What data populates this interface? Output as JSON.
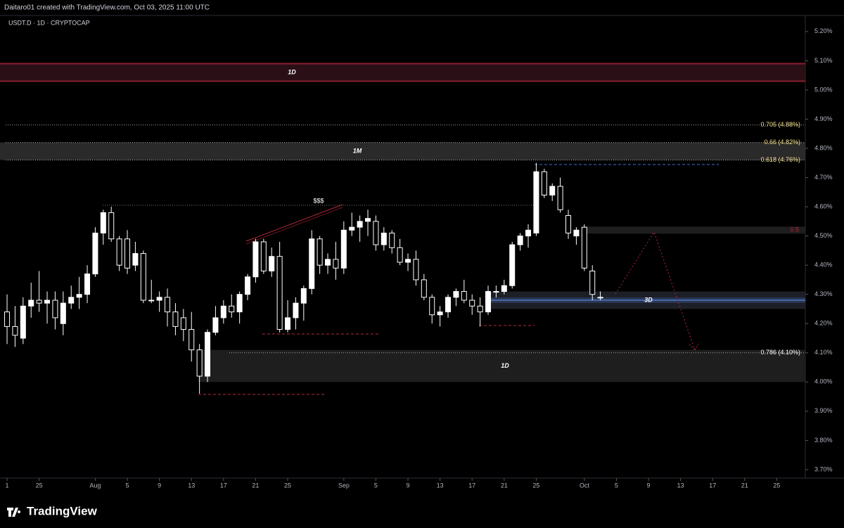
{
  "chart_data": {
    "type": "candlestick",
    "header": "Daitaro01 created with TradingView.com, Oct 03, 2025 11:00 UTC",
    "symbol": "USDT.D · 1D · CRYPTOCAP",
    "brand": "TradingView",
    "x": [
      0,
      1,
      2,
      3,
      4,
      5,
      6,
      7,
      8,
      9,
      10,
      11,
      12,
      13,
      14,
      15,
      16,
      17,
      18,
      19,
      20,
      21,
      22,
      23,
      24,
      25,
      26,
      27,
      28,
      29,
      30,
      31,
      32,
      33,
      34,
      35,
      36,
      37,
      38,
      39,
      40,
      41,
      42,
      43,
      44,
      45,
      46,
      47,
      48,
      49,
      50,
      51,
      52,
      53,
      54,
      55,
      56,
      57,
      58,
      59,
      60,
      61,
      62,
      63,
      64,
      65,
      66,
      67,
      68,
      69,
      70,
      71,
      72,
      73,
      74
    ],
    "open": [
      4.24,
      4.19,
      4.15,
      4.26,
      4.28,
      4.27,
      4.28,
      4.2,
      4.27,
      4.29,
      4.3,
      4.37,
      4.51,
      4.58,
      4.49,
      4.49,
      4.4,
      4.44,
      4.28,
      4.28,
      4.29,
      4.24,
      4.22,
      4.18,
      4.11,
      4.02,
      4.17,
      4.22,
      4.26,
      4.24,
      4.3,
      4.36,
      4.48,
      4.38,
      4.43,
      4.18,
      4.22,
      4.27,
      4.32,
      4.49,
      4.4,
      4.42,
      4.39,
      4.52,
      4.53,
      4.55,
      4.55,
      4.47,
      4.51,
      4.46,
      4.41,
      4.42,
      4.35,
      4.29,
      4.23,
      4.24,
      4.29,
      4.31,
      4.28,
      4.26,
      4.24,
      4.31,
      4.31,
      4.33,
      4.47,
      4.5,
      4.51,
      4.72,
      4.64,
      4.67,
      4.57,
      4.5,
      4.53,
      4.38,
      4.29
    ],
    "high": [
      4.3,
      4.26,
      4.29,
      4.34,
      4.38,
      4.31,
      4.31,
      4.31,
      4.33,
      4.36,
      4.4,
      4.53,
      4.59,
      4.6,
      4.5,
      4.52,
      4.48,
      4.45,
      4.35,
      4.31,
      4.32,
      4.27,
      4.25,
      4.24,
      4.13,
      4.18,
      4.26,
      4.28,
      4.3,
      4.31,
      4.37,
      4.49,
      4.49,
      4.46,
      4.48,
      4.28,
      4.29,
      4.33,
      4.52,
      4.5,
      4.44,
      4.48,
      4.55,
      4.58,
      4.57,
      4.59,
      4.57,
      4.53,
      4.52,
      4.49,
      4.44,
      4.45,
      4.37,
      4.3,
      4.26,
      4.3,
      4.32,
      4.35,
      4.3,
      4.29,
      4.33,
      4.33,
      4.35,
      4.48,
      4.51,
      4.54,
      4.75,
      4.73,
      4.68,
      4.7,
      4.59,
      4.53,
      4.54,
      4.4,
      4.31
    ],
    "low": [
      4.13,
      4.12,
      4.13,
      4.22,
      4.24,
      4.2,
      4.18,
      4.16,
      4.25,
      4.25,
      4.27,
      4.36,
      4.47,
      4.48,
      4.38,
      4.37,
      4.38,
      4.27,
      4.27,
      4.24,
      4.19,
      4.16,
      4.14,
      4.07,
      3.96,
      4.0,
      4.16,
      4.2,
      4.22,
      4.2,
      4.28,
      4.34,
      4.37,
      4.36,
      4.17,
      4.17,
      4.18,
      4.21,
      4.3,
      4.37,
      4.37,
      4.35,
      4.37,
      4.5,
      4.48,
      4.5,
      4.45,
      4.45,
      4.44,
      4.4,
      4.38,
      4.33,
      4.28,
      4.2,
      4.19,
      4.22,
      4.26,
      4.27,
      4.23,
      4.19,
      4.23,
      4.29,
      4.3,
      4.32,
      4.45,
      4.46,
      4.5,
      4.63,
      4.62,
      4.58,
      4.49,
      4.47,
      4.38,
      4.28,
      4.28
    ],
    "close": [
      4.19,
      4.16,
      4.26,
      4.28,
      4.27,
      4.28,
      4.22,
      4.27,
      4.29,
      4.3,
      4.37,
      4.51,
      4.58,
      4.49,
      4.4,
      4.39,
      4.44,
      4.28,
      4.28,
      4.29,
      4.24,
      4.19,
      4.18,
      4.11,
      4.02,
      4.17,
      4.22,
      4.26,
      4.24,
      4.3,
      4.36,
      4.48,
      4.38,
      4.43,
      4.18,
      4.22,
      4.27,
      4.32,
      4.49,
      4.4,
      4.42,
      4.39,
      4.52,
      4.53,
      4.55,
      4.56,
      4.47,
      4.51,
      4.46,
      4.41,
      4.42,
      4.35,
      4.29,
      4.23,
      4.24,
      4.29,
      4.31,
      4.28,
      4.26,
      4.24,
      4.31,
      4.31,
      4.33,
      4.47,
      4.5,
      4.52,
      4.72,
      4.64,
      4.67,
      4.59,
      4.51,
      4.52,
      4.39,
      4.3,
      4.29
    ],
    "xlim": [
      -0.88,
      99.56
    ],
    "xticks": [
      {
        "value": 0,
        "label": "1"
      },
      {
        "value": 4,
        "label": "25"
      },
      {
        "value": 11,
        "label": "Aug"
      },
      {
        "value": 15,
        "label": "5"
      },
      {
        "value": 19,
        "label": "9"
      },
      {
        "value": 23,
        "label": "13"
      },
      {
        "value": 27,
        "label": "17"
      },
      {
        "value": 31,
        "label": "21"
      },
      {
        "value": 35,
        "label": "25"
      },
      {
        "value": 42,
        "label": "Sep"
      },
      {
        "value": 46,
        "label": "5"
      },
      {
        "value": 50,
        "label": "9"
      },
      {
        "value": 54,
        "label": "13"
      },
      {
        "value": 58,
        "label": "17"
      },
      {
        "value": 62,
        "label": "21"
      },
      {
        "value": 66,
        "label": "25"
      },
      {
        "value": 72,
        "label": "Oct"
      },
      {
        "value": 76,
        "label": "5"
      },
      {
        "value": 80,
        "label": "9"
      },
      {
        "value": 84,
        "label": "13"
      },
      {
        "value": 88,
        "label": "17"
      },
      {
        "value": 92,
        "label": "21"
      },
      {
        "value": 96,
        "label": "25"
      }
    ],
    "ylim": [
      3.671,
      5.255
    ],
    "yticks": [
      {
        "value": 5.2,
        "label": "5.20%"
      },
      {
        "value": 5.1,
        "label": "5.10%"
      },
      {
        "value": 5.0,
        "label": "5.00%"
      },
      {
        "value": 4.9,
        "label": "4.90%"
      },
      {
        "value": 4.8,
        "label": "4.80%"
      },
      {
        "value": 4.7,
        "label": "4.70%"
      },
      {
        "value": 4.6,
        "label": "4.60%"
      },
      {
        "value": 4.5,
        "label": "4.50%"
      },
      {
        "value": 4.4,
        "label": "4.40%"
      },
      {
        "value": 4.3,
        "label": "4.30%"
      },
      {
        "value": 4.2,
        "label": "4.20%"
      },
      {
        "value": 4.1,
        "label": "4.10%"
      },
      {
        "value": 4.0,
        "label": "4.00%"
      },
      {
        "value": 3.9,
        "label": "3.90%"
      },
      {
        "value": 3.8,
        "label": "3.80%"
      },
      {
        "value": 3.7,
        "label": "3.70%"
      }
    ],
    "up_color": "#ffffff",
    "down_color": "#000000",
    "zones": [
      {
        "label": "1D",
        "range": [
          5.03,
          5.09
        ],
        "color": "#2a1016"
      },
      {
        "label": "1M",
        "range": [
          4.76,
          4.82
        ],
        "color": "#2a2a2a"
      },
      {
        "label": "3D",
        "range": [
          4.25,
          4.31
        ],
        "color": "#1c1f26"
      },
      {
        "label": "1D",
        "range": [
          4.0,
          4.11
        ],
        "color": "#1e1e1e"
      }
    ],
    "fib_levels": [
      {
        "label": "0.705 (4.88%)",
        "value": 4.88
      },
      {
        "label": "0.66 (4.82%)",
        "value": 4.82
      },
      {
        "label": "0.618 (4.76%)",
        "value": 4.76
      },
      {
        "label": "0.786 (4.10%)",
        "value": 4.1
      }
    ],
    "mid_level": {
      "label": "0.5",
      "value": 4.52
    },
    "annotations": [
      "$$$"
    ]
  }
}
